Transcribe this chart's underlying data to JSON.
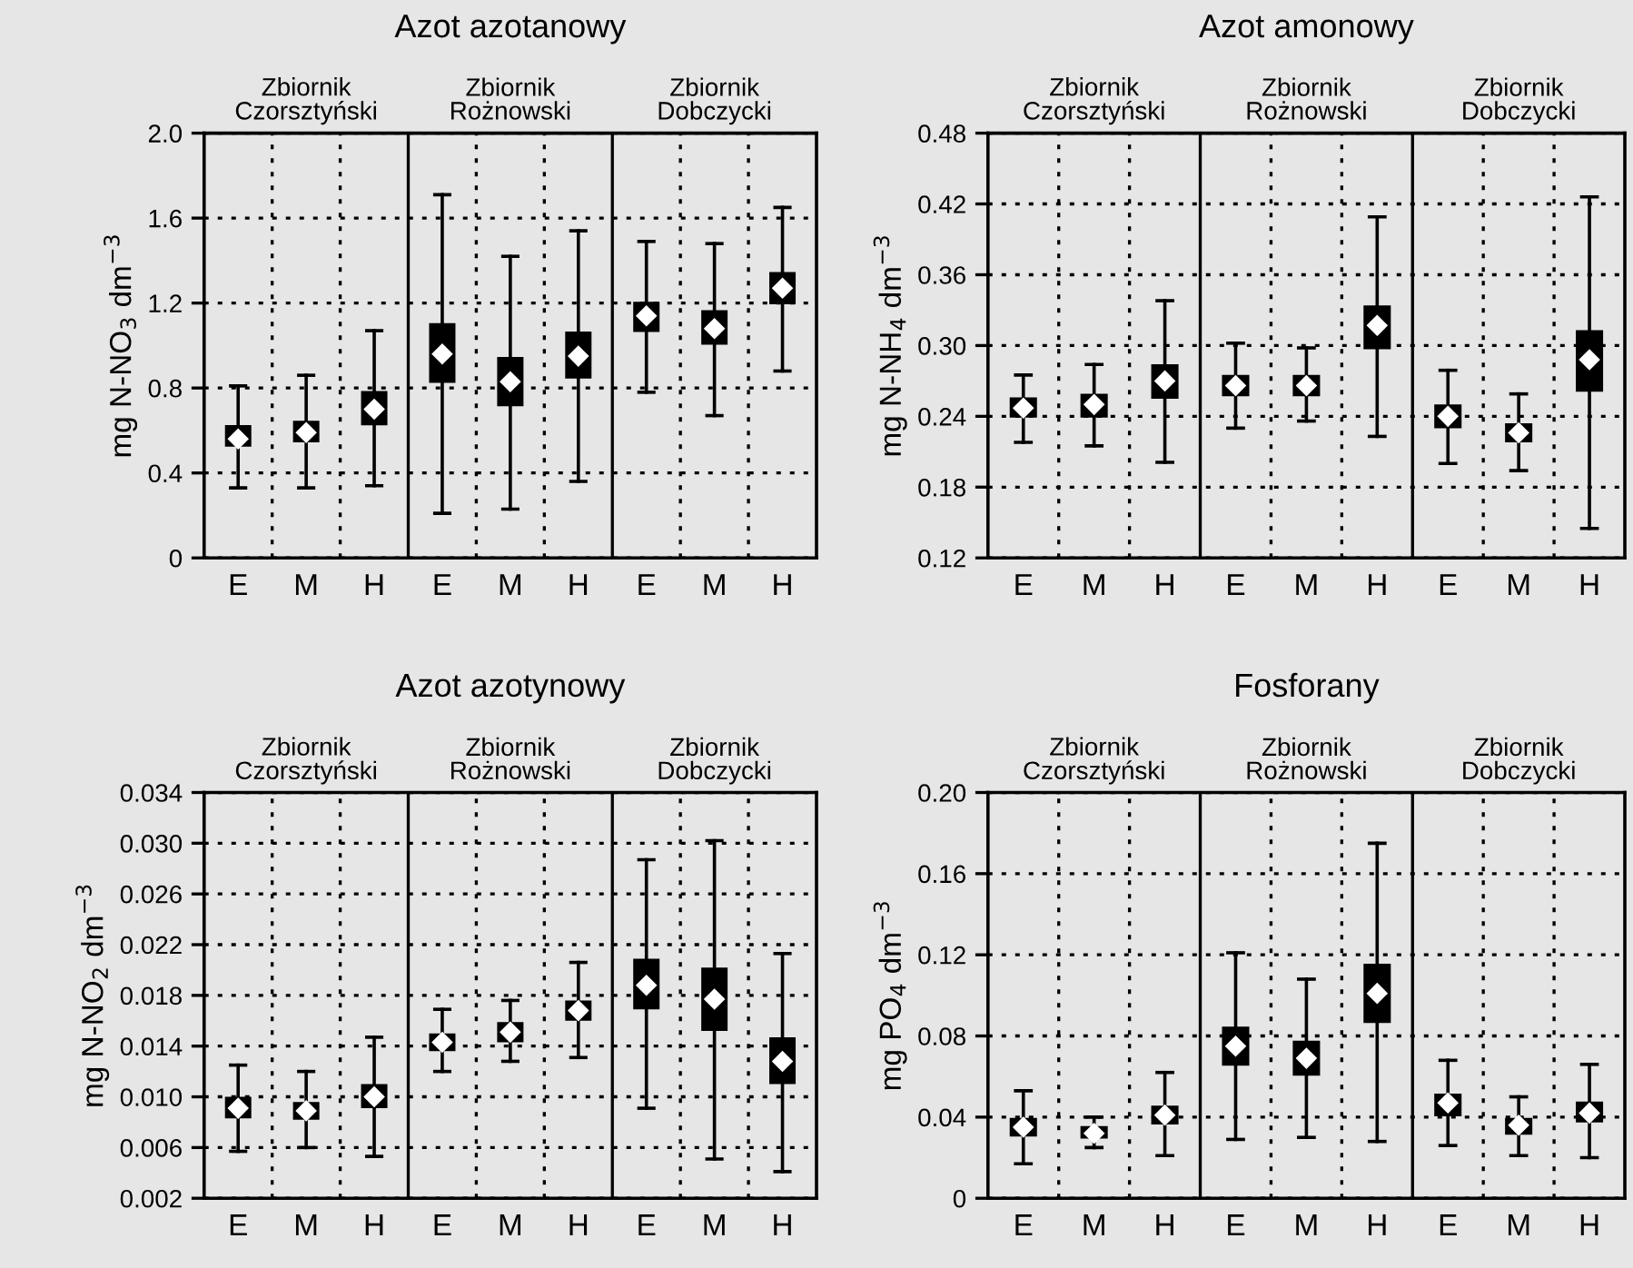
{
  "chart_data": [
    {
      "type": "box",
      "title": "Azot azotanowy",
      "ylabel": "mg N-NO$_{3}$ dm$^{−3}$",
      "categories": [
        "E",
        "M",
        "H",
        "E",
        "M",
        "H",
        "E",
        "M",
        "H"
      ],
      "annotations": [
        "Zbiornik\nCzorsztyński",
        "Zbiornik\nRożnowski",
        "Zbiornik\nDobczycki"
      ],
      "ylim": [
        0,
        2.0
      ],
      "yticks": [
        0,
        0.4,
        0.8,
        1.2,
        1.6,
        {
          "value": 2.0,
          "label": "2.0"
        }
      ],
      "grid": true,
      "color": "#000000",
      "boxes": [
        {
          "low": 0.33,
          "q1": 0.53,
          "median": 0.56,
          "mean": 0.56,
          "q3": 0.62,
          "high": 0.81
        },
        {
          "low": 0.33,
          "q1": 0.55,
          "median": 0.59,
          "mean": 0.59,
          "q3": 0.64,
          "high": 0.86
        },
        {
          "low": 0.34,
          "q1": 0.63,
          "median": 0.7,
          "mean": 0.7,
          "q3": 0.78,
          "high": 1.07
        },
        {
          "low": 0.21,
          "q1": 0.83,
          "median": 0.96,
          "mean": 0.96,
          "q3": 1.1,
          "high": 1.71
        },
        {
          "low": 0.23,
          "q1": 0.72,
          "median": 0.83,
          "mean": 0.83,
          "q3": 0.94,
          "high": 1.42
        },
        {
          "low": 0.36,
          "q1": 0.85,
          "median": 0.95,
          "mean": 0.95,
          "q3": 1.06,
          "high": 1.54
        },
        {
          "low": 0.78,
          "q1": 1.07,
          "median": 1.14,
          "mean": 1.14,
          "q3": 1.2,
          "high": 1.49
        },
        {
          "low": 0.67,
          "q1": 1.01,
          "median": 1.08,
          "mean": 1.08,
          "q3": 1.16,
          "high": 1.48
        },
        {
          "low": 0.88,
          "q1": 1.2,
          "median": 1.27,
          "mean": 1.27,
          "q3": 1.34,
          "high": 1.65
        }
      ]
    },
    {
      "type": "box",
      "title": "Azot amonowy",
      "ylabel": "mg N-NH$_{4}$ dm$^{−3}$",
      "categories": [
        "E",
        "M",
        "H",
        "E",
        "M",
        "H",
        "E",
        "M",
        "H"
      ],
      "annotations": [
        "Zbiornik\nCzorsztyński",
        "Zbiornik\nRożnowski",
        "Zbiornik\nDobczycki"
      ],
      "ylim": [
        0.12,
        0.48
      ],
      "yticks": [
        {
          "value": 0.12,
          "label": "0.12"
        },
        {
          "value": 0.18,
          "label": "0.18"
        },
        {
          "value": 0.24,
          "label": "0.24"
        },
        {
          "value": 0.3,
          "label": "0.30"
        },
        {
          "value": 0.36,
          "label": "0.36"
        },
        {
          "value": 0.42,
          "label": "0.42"
        },
        {
          "value": 0.48,
          "label": "0.48"
        }
      ],
      "grid": true,
      "color": "#000000",
      "boxes": [
        {
          "low": 0.218,
          "q1": 0.24,
          "median": 0.247,
          "mean": 0.247,
          "q3": 0.255,
          "high": 0.275
        },
        {
          "low": 0.215,
          "q1": 0.24,
          "median": 0.25,
          "mean": 0.25,
          "q3": 0.258,
          "high": 0.284
        },
        {
          "low": 0.201,
          "q1": 0.256,
          "median": 0.27,
          "mean": 0.27,
          "q3": 0.283,
          "high": 0.338
        },
        {
          "low": 0.23,
          "q1": 0.258,
          "median": 0.266,
          "mean": 0.266,
          "q3": 0.274,
          "high": 0.302
        },
        {
          "low": 0.236,
          "q1": 0.258,
          "median": 0.266,
          "mean": 0.266,
          "q3": 0.274,
          "high": 0.298
        },
        {
          "low": 0.223,
          "q1": 0.298,
          "median": 0.317,
          "mean": 0.317,
          "q3": 0.333,
          "high": 0.409
        },
        {
          "low": 0.2,
          "q1": 0.231,
          "median": 0.24,
          "mean": 0.24,
          "q3": 0.249,
          "high": 0.279
        },
        {
          "low": 0.194,
          "q1": 0.219,
          "median": 0.226,
          "mean": 0.226,
          "q3": 0.233,
          "high": 0.259
        },
        {
          "low": 0.145,
          "q1": 0.262,
          "median": 0.288,
          "mean": 0.288,
          "q3": 0.312,
          "high": 0.426
        }
      ]
    },
    {
      "type": "box",
      "title": "Azot azotynowy",
      "ylabel": "mg N-NO$_{2}$ dm$^{−3}$",
      "categories": [
        "E",
        "M",
        "H",
        "E",
        "M",
        "H",
        "E",
        "M",
        "H"
      ],
      "annotations": [
        "Zbiornik\nCzorsztyński",
        "Zbiornik\nRożnowski",
        "Zbiornik\nDobczycki"
      ],
      "ylim": [
        0.002,
        0.034
      ],
      "yticks": [
        {
          "value": 0.002,
          "label": "0.002"
        },
        {
          "value": 0.006,
          "label": "0.006"
        },
        {
          "value": 0.01,
          "label": "0.010"
        },
        {
          "value": 0.014,
          "label": "0.014"
        },
        {
          "value": 0.018,
          "label": "0.018"
        },
        {
          "value": 0.022,
          "label": "0.022"
        },
        {
          "value": 0.026,
          "label": "0.026"
        },
        {
          "value": 0.03,
          "label": "0.030"
        },
        {
          "value": 0.034,
          "label": "0.034"
        }
      ],
      "grid": true,
      "color": "#000000",
      "boxes": [
        {
          "low": 0.0057,
          "q1": 0.0084,
          "median": 0.0091,
          "mean": 0.0091,
          "q3": 0.0099,
          "high": 0.0125
        },
        {
          "low": 0.006,
          "q1": 0.0083,
          "median": 0.0089,
          "mean": 0.0089,
          "q3": 0.0095,
          "high": 0.012
        },
        {
          "low": 0.0053,
          "q1": 0.0092,
          "median": 0.01,
          "mean": 0.01,
          "q3": 0.0109,
          "high": 0.0147
        },
        {
          "low": 0.012,
          "q1": 0.0137,
          "median": 0.0143,
          "mean": 0.0143,
          "q3": 0.0149,
          "high": 0.0169
        },
        {
          "low": 0.0128,
          "q1": 0.0144,
          "median": 0.0151,
          "mean": 0.0151,
          "q3": 0.0158,
          "high": 0.0176
        },
        {
          "low": 0.0131,
          "q1": 0.0161,
          "median": 0.0168,
          "mean": 0.0168,
          "q3": 0.0175,
          "high": 0.0206
        },
        {
          "low": 0.0091,
          "q1": 0.017,
          "median": 0.0188,
          "mean": 0.0188,
          "q3": 0.0208,
          "high": 0.0287
        },
        {
          "low": 0.0051,
          "q1": 0.0153,
          "median": 0.0177,
          "mean": 0.0177,
          "q3": 0.0201,
          "high": 0.0302
        },
        {
          "low": 0.0041,
          "q1": 0.0111,
          "median": 0.0128,
          "mean": 0.0128,
          "q3": 0.0146,
          "high": 0.0213
        }
      ]
    },
    {
      "type": "box",
      "title": "Fosforany",
      "ylabel": "mg PO$_{4}$ dm$^{−3}$",
      "categories": [
        "E",
        "M",
        "H",
        "E",
        "M",
        "H",
        "E",
        "M",
        "H"
      ],
      "annotations": [
        "Zbiornik\nCzorsztyński",
        "Zbiornik\nRożnowski",
        "Zbiornik\nDobczycki"
      ],
      "ylim": [
        0,
        0.2
      ],
      "yticks": [
        0,
        0.04,
        0.08,
        0.12,
        0.16,
        {
          "value": 0.2,
          "label": "0.20"
        }
      ],
      "grid": true,
      "color": "#000000",
      "boxes": [
        {
          "low": 0.017,
          "q1": 0.031,
          "median": 0.035,
          "mean": 0.035,
          "q3": 0.039,
          "high": 0.053
        },
        {
          "low": 0.025,
          "q1": 0.03,
          "median": 0.032,
          "mean": 0.032,
          "q3": 0.035,
          "high": 0.04
        },
        {
          "low": 0.021,
          "q1": 0.037,
          "median": 0.041,
          "mean": 0.041,
          "q3": 0.045,
          "high": 0.062
        },
        {
          "low": 0.029,
          "q1": 0.066,
          "median": 0.075,
          "mean": 0.075,
          "q3": 0.084,
          "high": 0.121
        },
        {
          "low": 0.03,
          "q1": 0.061,
          "median": 0.069,
          "mean": 0.069,
          "q3": 0.077,
          "high": 0.108
        },
        {
          "low": 0.028,
          "q1": 0.087,
          "median": 0.101,
          "mean": 0.101,
          "q3": 0.115,
          "high": 0.175
        },
        {
          "low": 0.026,
          "q1": 0.041,
          "median": 0.047,
          "mean": 0.047,
          "q3": 0.051,
          "high": 0.068
        },
        {
          "low": 0.021,
          "q1": 0.032,
          "median": 0.036,
          "mean": 0.036,
          "q3": 0.039,
          "high": 0.05
        },
        {
          "low": 0.02,
          "q1": 0.038,
          "median": 0.042,
          "mean": 0.042,
          "q3": 0.047,
          "high": 0.066
        }
      ]
    }
  ]
}
